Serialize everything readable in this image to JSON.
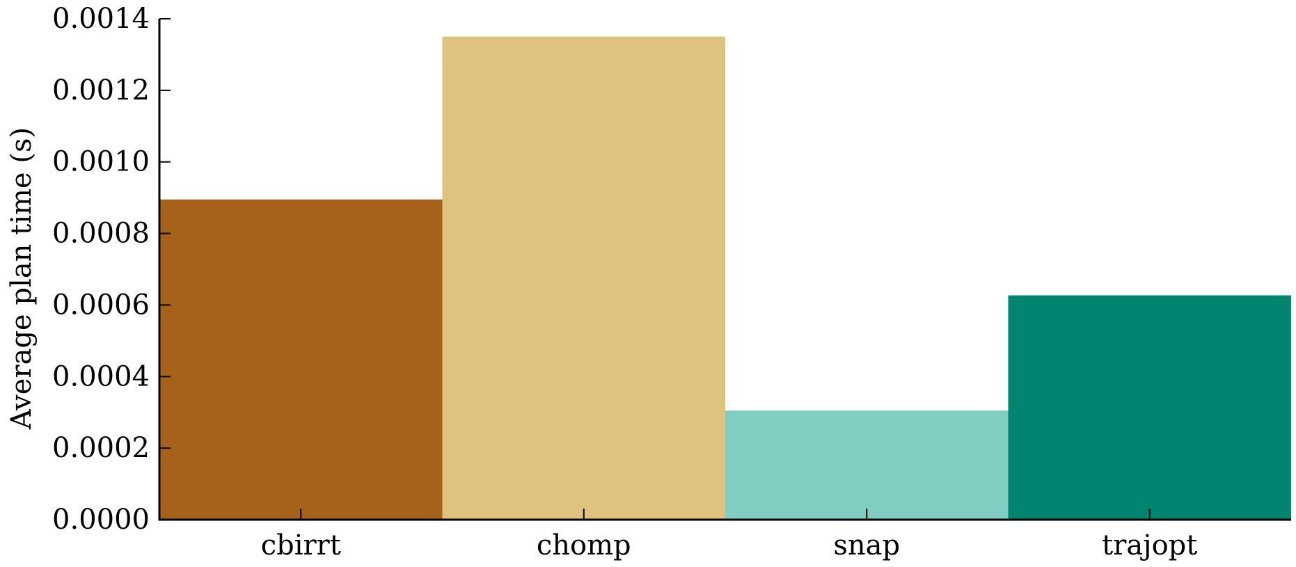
{
  "chart_data": {
    "type": "bar",
    "title": "",
    "xlabel": "",
    "ylabel": "Average plan time (s)",
    "categories": [
      "cbirrt",
      "chomp",
      "snap",
      "trajopt"
    ],
    "values": [
      0.000895,
      0.00135,
      0.000305,
      0.000627
    ],
    "colors": [
      "#a6611a",
      "#dfc27d",
      "#80cdc1",
      "#018571"
    ],
    "ylim": [
      0,
      0.0014
    ],
    "yticks": [
      0.0,
      0.0002,
      0.0004,
      0.0006,
      0.0008,
      0.001,
      0.0012,
      0.0014
    ],
    "ytick_labels": [
      "0.0000",
      "0.0002",
      "0.0004",
      "0.0006",
      "0.0008",
      "0.0010",
      "0.0012",
      "0.0014"
    ],
    "grid": false,
    "legend": "none"
  }
}
